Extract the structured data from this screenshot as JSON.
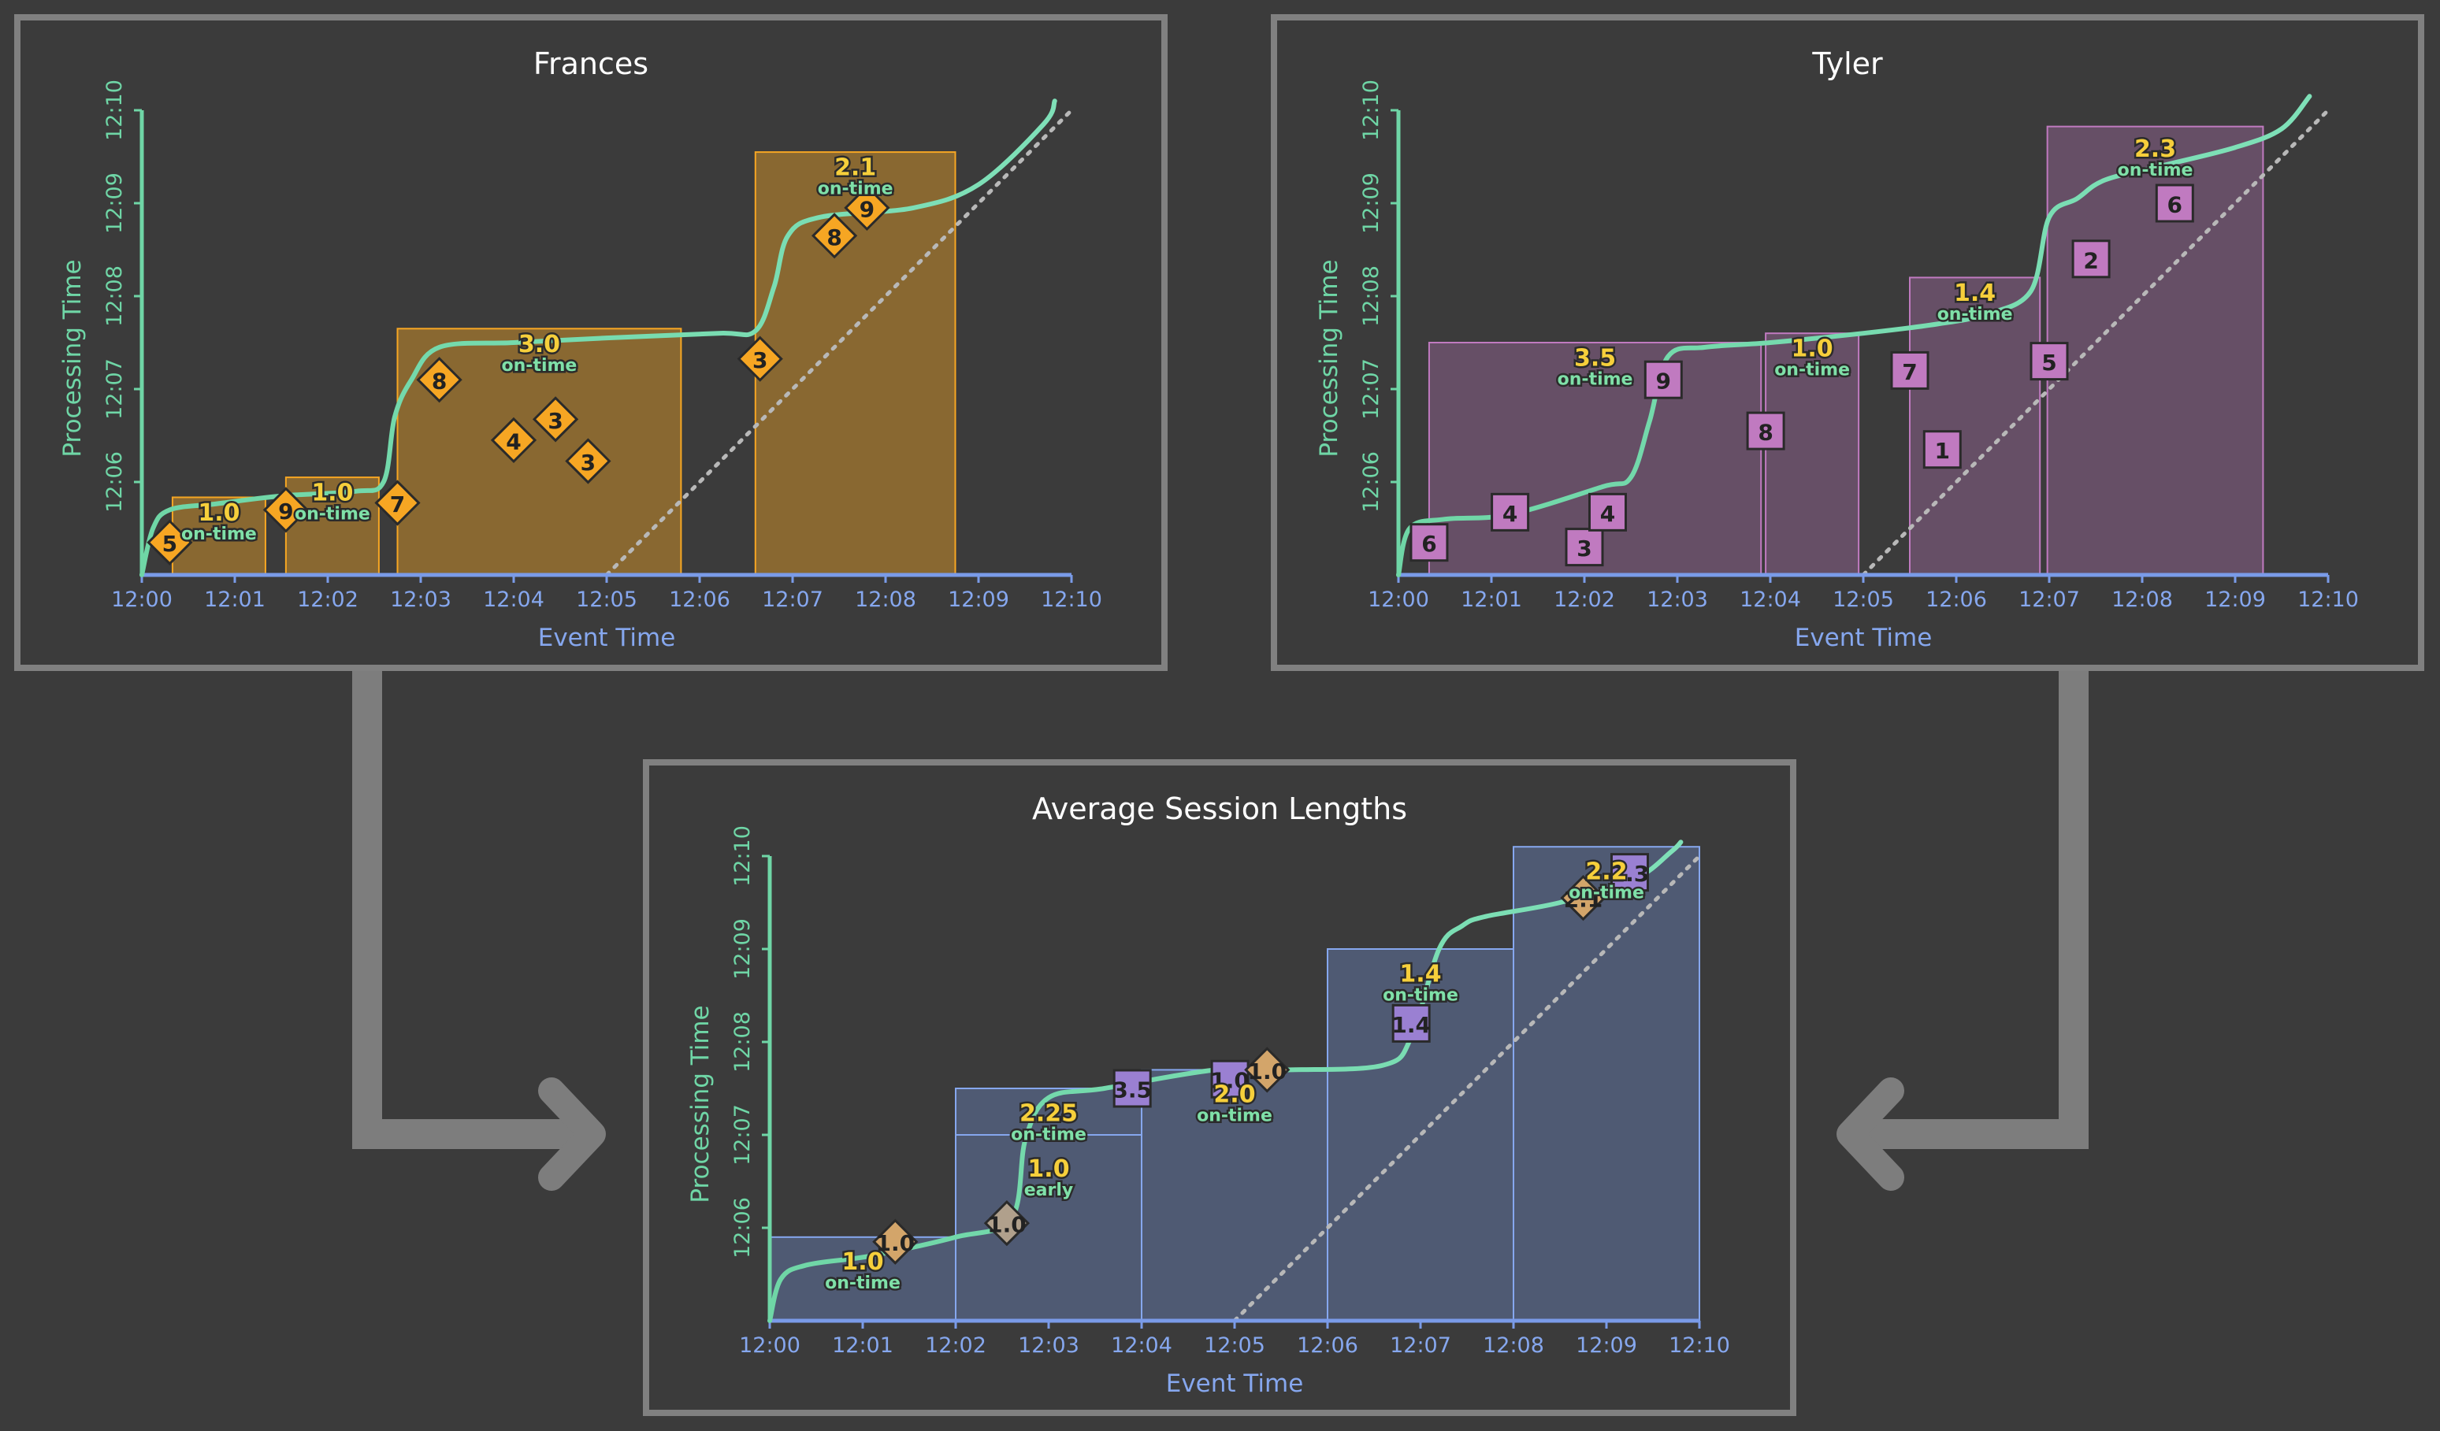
{
  "axes": {
    "x_label": "Event Time",
    "y_label": "Processing Time",
    "x_ticks": [
      "12:00",
      "12:01",
      "12:02",
      "12:03",
      "12:04",
      "12:05",
      "12:06",
      "12:07",
      "12:08",
      "12:09",
      "12:10"
    ],
    "y_ticks": [
      "12:06",
      "12:07",
      "12:08",
      "12:09",
      "12:10"
    ]
  },
  "colors": {
    "frame": "#808080",
    "background": "#3b3b3b",
    "frances": "#f6a623",
    "tyler": "#c07ac0",
    "average": "#7a9be8",
    "watermark": "#6fd6a6",
    "value": "#f6cf3b",
    "state": "#7fe0a8"
  },
  "chart_data": [
    {
      "type": "scatter",
      "title": "Frances",
      "xlabel": "Event Time",
      "ylabel": "Processing Time",
      "marker": "diamond",
      "watermark": [
        [
          0.0,
          0.0
        ],
        [
          0.12,
          1.0
        ],
        [
          0.3,
          1.4
        ],
        [
          0.8,
          1.53
        ],
        [
          1.5,
          1.7
        ],
        [
          2.3,
          1.8
        ],
        [
          2.6,
          2.0
        ],
        [
          2.72,
          3.4
        ],
        [
          2.9,
          4.2
        ],
        [
          3.2,
          4.9
        ],
        [
          4.0,
          5.0
        ],
        [
          5.0,
          5.1
        ],
        [
          6.2,
          5.2
        ],
        [
          6.6,
          5.25
        ],
        [
          6.8,
          6.2
        ],
        [
          6.95,
          7.3
        ],
        [
          7.3,
          7.7
        ],
        [
          8.3,
          7.9
        ],
        [
          9.0,
          8.4
        ],
        [
          9.7,
          9.7
        ],
        [
          9.82,
          10.2
        ]
      ],
      "windows": [
        {
          "x0": 0.33,
          "x1": 1.33,
          "y0": 0.0,
          "y1": 1.67,
          "value": "1.0",
          "state": "on-time"
        },
        {
          "x0": 1.55,
          "x1": 2.55,
          "y0": 0.0,
          "y1": 2.1,
          "value": "1.0",
          "state": "on-time"
        },
        {
          "x0": 2.75,
          "x1": 5.8,
          "y0": 0.0,
          "y1": 5.3,
          "value": "3.0",
          "state": "on-time"
        },
        {
          "x0": 6.6,
          "x1": 8.75,
          "y0": 0.0,
          "y1": 9.1,
          "value": "2.1",
          "state": "on-time"
        }
      ],
      "points": [
        {
          "x": 0.3,
          "y": 0.7,
          "label": "5"
        },
        {
          "x": 1.55,
          "y": 1.4,
          "label": "9"
        },
        {
          "x": 2.75,
          "y": 1.55,
          "label": "7"
        },
        {
          "x": 3.2,
          "y": 4.2,
          "label": "8"
        },
        {
          "x": 4.0,
          "y": 2.9,
          "label": "4"
        },
        {
          "x": 4.45,
          "y": 3.35,
          "label": "3"
        },
        {
          "x": 4.8,
          "y": 2.45,
          "label": "3"
        },
        {
          "x": 6.65,
          "y": 4.65,
          "label": "3"
        },
        {
          "x": 7.45,
          "y": 7.3,
          "label": "8"
        },
        {
          "x": 7.8,
          "y": 7.9,
          "label": "9"
        }
      ]
    },
    {
      "type": "scatter",
      "title": "Tyler",
      "xlabel": "Event Time",
      "ylabel": "Processing Time",
      "marker": "square",
      "watermark": [
        [
          0.0,
          0.0
        ],
        [
          0.12,
          1.0
        ],
        [
          0.5,
          1.2
        ],
        [
          1.2,
          1.3
        ],
        [
          2.2,
          1.9
        ],
        [
          2.5,
          2.1
        ],
        [
          2.7,
          3.3
        ],
        [
          2.9,
          4.7
        ],
        [
          3.3,
          4.9
        ],
        [
          4.0,
          5.0
        ],
        [
          5.0,
          5.2
        ],
        [
          5.8,
          5.4
        ],
        [
          6.3,
          5.6
        ],
        [
          6.8,
          6.1
        ],
        [
          7.0,
          7.7
        ],
        [
          7.3,
          8.1
        ],
        [
          7.6,
          8.5
        ],
        [
          8.2,
          8.8
        ],
        [
          9.0,
          9.2
        ],
        [
          9.5,
          9.6
        ],
        [
          9.8,
          10.3
        ]
      ],
      "windows": [
        {
          "x0": 0.33,
          "x1": 3.9,
          "y0": 0.0,
          "y1": 5.0,
          "value": "3.5",
          "state": "on-time"
        },
        {
          "x0": 3.95,
          "x1": 4.95,
          "y0": 0.0,
          "y1": 5.2,
          "value": "1.0",
          "state": "on-time"
        },
        {
          "x0": 5.5,
          "x1": 6.9,
          "y0": 0.0,
          "y1": 6.4,
          "value": "1.4",
          "state": "on-time"
        },
        {
          "x0": 6.98,
          "x1": 9.3,
          "y0": 0.0,
          "y1": 9.65,
          "value": "2.3",
          "state": "on-time"
        }
      ],
      "points": [
        {
          "x": 0.33,
          "y": 0.7,
          "label": "6"
        },
        {
          "x": 1.2,
          "y": 1.35,
          "label": "4"
        },
        {
          "x": 2.0,
          "y": 0.6,
          "label": "3"
        },
        {
          "x": 2.25,
          "y": 1.35,
          "label": "4"
        },
        {
          "x": 2.85,
          "y": 4.2,
          "label": "9"
        },
        {
          "x": 3.95,
          "y": 3.1,
          "label": "8"
        },
        {
          "x": 5.5,
          "y": 4.4,
          "label": "7"
        },
        {
          "x": 5.85,
          "y": 2.7,
          "label": "1"
        },
        {
          "x": 7.0,
          "y": 4.6,
          "label": "5"
        },
        {
          "x": 7.45,
          "y": 6.8,
          "label": "2"
        },
        {
          "x": 8.35,
          "y": 8.0,
          "label": "6"
        }
      ]
    },
    {
      "type": "scatter",
      "title": "Average Session Lengths",
      "xlabel": "Event Time",
      "ylabel": "Processing Time",
      "marker": "mixed",
      "watermark": [
        [
          0.0,
          0.0
        ],
        [
          0.12,
          0.9
        ],
        [
          0.4,
          1.2
        ],
        [
          1.1,
          1.4
        ],
        [
          2.0,
          1.8
        ],
        [
          2.6,
          2.2
        ],
        [
          2.75,
          3.9
        ],
        [
          3.0,
          4.8
        ],
        [
          3.6,
          5.0
        ],
        [
          4.8,
          5.4
        ],
        [
          5.6,
          5.4
        ],
        [
          6.6,
          5.5
        ],
        [
          6.9,
          6.1
        ],
        [
          7.2,
          8.0
        ],
        [
          7.45,
          8.5
        ],
        [
          7.7,
          8.7
        ],
        [
          8.5,
          9.0
        ],
        [
          9.3,
          9.5
        ],
        [
          9.7,
          10.1
        ],
        [
          9.8,
          10.3
        ]
      ],
      "windows": [
        {
          "x0": 0.0,
          "x1": 2.0,
          "y0": 0.0,
          "y1": 1.8,
          "value": "1.0",
          "state": "on-time"
        },
        {
          "x0": 2.0,
          "x1": 4.0,
          "y0": 0.0,
          "y1": 4.0,
          "value": "1.0",
          "state": "early"
        },
        {
          "x0": 2.0,
          "x1": 4.0,
          "y0": 4.0,
          "y1": 5.0,
          "value": "2.25",
          "state": "on-time"
        },
        {
          "x0": 4.0,
          "x1": 6.0,
          "y0": 0.0,
          "y1": 5.4,
          "value": "2.0",
          "state": "on-time"
        },
        {
          "x0": 6.0,
          "x1": 8.0,
          "y0": 0.0,
          "y1": 8.0,
          "value": "1.4",
          "state": "on-time"
        },
        {
          "x0": 8.0,
          "x1": 10.0,
          "y0": 0.0,
          "y1": 10.2,
          "value": "2.2",
          "state": "on-time"
        }
      ],
      "points": [
        {
          "x": 1.35,
          "y": 1.7,
          "label": "1.0",
          "marker": "diamond",
          "color": "#d3a56a"
        },
        {
          "x": 2.55,
          "y": 2.1,
          "label": "1.0",
          "marker": "diamond",
          "color": "#b0a08c"
        },
        {
          "x": 3.9,
          "y": 5.0,
          "label": "3.5",
          "marker": "square",
          "color": "#9a80d2"
        },
        {
          "x": 4.95,
          "y": 5.2,
          "label": "1.0",
          "marker": "square",
          "color": "#9a80d2"
        },
        {
          "x": 5.35,
          "y": 5.4,
          "label": "1.0",
          "marker": "diamond",
          "color": "#d3a56a"
        },
        {
          "x": 6.9,
          "y": 6.4,
          "label": "1.4",
          "marker": "square",
          "color": "#9a80d2"
        },
        {
          "x": 9.25,
          "y": 9.65,
          "label": "2.3",
          "marker": "square",
          "color": "#9a80d2"
        },
        {
          "x": 8.75,
          "y": 9.1,
          "label": "2.1",
          "marker": "diamond",
          "color": "#d3a56a"
        }
      ]
    }
  ]
}
